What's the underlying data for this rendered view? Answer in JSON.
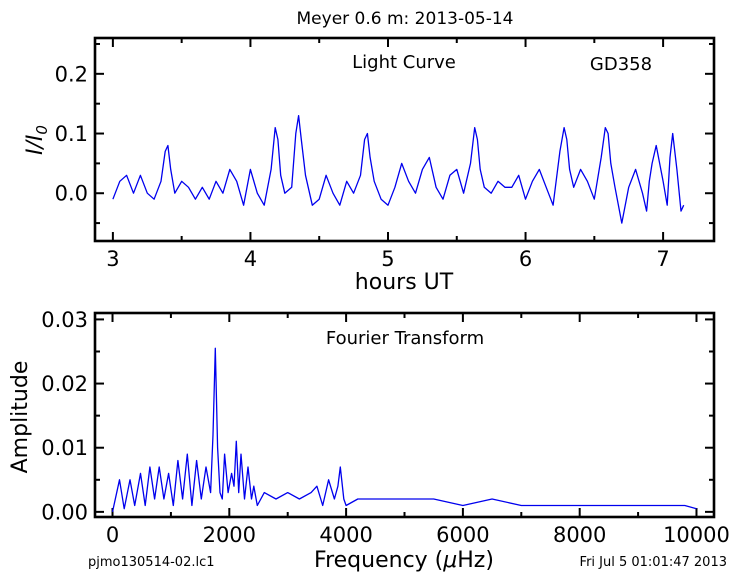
{
  "figure": {
    "title": "Meyer 0.6 m:  2013-05-14",
    "footer_left": "pjmo130514-02.lc1",
    "footer_right": "Fri Jul  5 01:01:47 2013",
    "series_color": "#0000ee"
  },
  "chart_data": [
    {
      "type": "line",
      "title": "Light Curve",
      "annotation": "GD358",
      "xlabel": "hours UT",
      "ylabel": "I/I0",
      "ylabel_main": "I/I",
      "ylabel_sub": "0",
      "xlim": [
        2.87,
        7.37
      ],
      "ylim": [
        -0.08,
        0.26
      ],
      "xticks": [
        3,
        4,
        5,
        6,
        7
      ],
      "xtick_labels": [
        "3",
        "4",
        "5",
        "6",
        "7"
      ],
      "yticks": [
        0.0,
        0.1,
        0.2
      ],
      "ytick_labels": [
        "0.0",
        "0.1",
        "0.2"
      ],
      "series": [
        {
          "x": [
            3.0,
            3.05,
            3.1,
            3.15,
            3.2,
            3.25,
            3.3,
            3.35,
            3.38,
            3.4,
            3.42,
            3.45,
            3.5,
            3.55,
            3.6,
            3.65,
            3.7,
            3.75,
            3.8,
            3.85,
            3.9,
            3.95,
            4.0,
            4.05,
            4.1,
            4.15,
            4.18,
            4.2,
            4.22,
            4.25,
            4.3,
            4.33,
            4.35,
            4.37,
            4.4,
            4.45,
            4.5,
            4.55,
            4.6,
            4.65,
            4.7,
            4.75,
            4.8,
            4.83,
            4.85,
            4.87,
            4.9,
            4.95,
            5.0,
            5.05,
            5.1,
            5.15,
            5.2,
            5.25,
            5.3,
            5.35,
            5.4,
            5.45,
            5.5,
            5.55,
            5.6,
            5.63,
            5.65,
            5.67,
            5.7,
            5.75,
            5.8,
            5.85,
            5.9,
            5.95,
            6.0,
            6.05,
            6.1,
            6.15,
            6.2,
            6.25,
            6.28,
            6.3,
            6.32,
            6.35,
            6.4,
            6.45,
            6.5,
            6.55,
            6.58,
            6.6,
            6.62,
            6.65,
            6.7,
            6.75,
            6.8,
            6.85,
            6.88,
            6.9,
            6.92,
            6.95,
            7.0,
            7.03,
            7.05,
            7.07,
            7.1,
            7.13,
            7.15
          ],
          "y": [
            -0.01,
            0.02,
            0.03,
            0.0,
            0.03,
            0.0,
            -0.01,
            0.02,
            0.07,
            0.08,
            0.04,
            0.0,
            0.02,
            0.01,
            -0.01,
            0.01,
            -0.01,
            0.02,
            0.0,
            0.04,
            0.02,
            -0.02,
            0.04,
            0.0,
            -0.02,
            0.04,
            0.11,
            0.09,
            0.03,
            0.0,
            0.01,
            0.1,
            0.13,
            0.09,
            0.03,
            -0.02,
            -0.01,
            0.03,
            0.0,
            -0.02,
            0.02,
            0.0,
            0.03,
            0.09,
            0.1,
            0.06,
            0.02,
            -0.01,
            -0.02,
            0.01,
            0.05,
            0.02,
            0.0,
            0.04,
            0.06,
            0.01,
            -0.01,
            0.03,
            0.04,
            0.0,
            0.05,
            0.11,
            0.09,
            0.04,
            0.01,
            0.0,
            0.02,
            0.01,
            0.01,
            0.03,
            -0.01,
            0.02,
            0.04,
            0.01,
            -0.02,
            0.07,
            0.11,
            0.09,
            0.04,
            0.01,
            0.04,
            0.02,
            -0.01,
            0.06,
            0.11,
            0.1,
            0.05,
            0.01,
            -0.05,
            0.01,
            0.04,
            0.0,
            -0.03,
            0.02,
            0.05,
            0.08,
            0.02,
            -0.02,
            0.06,
            0.1,
            0.04,
            -0.03,
            -0.02
          ]
        }
      ]
    },
    {
      "type": "line",
      "title": "Fourier Transform",
      "xlabel": "Frequency (μHz)",
      "xlabel_pre": "Frequency (",
      "xlabel_mu": "μ",
      "xlabel_post": "Hz)",
      "ylabel": "Amplitude",
      "xlim": [
        -300,
        10300
      ],
      "ylim": [
        -0.0008,
        0.031
      ],
      "xticks": [
        0,
        2000,
        4000,
        6000,
        8000,
        10000
      ],
      "xtick_labels": [
        "0",
        "2000",
        "4000",
        "6000",
        "8000",
        "10000"
      ],
      "yticks": [
        0.0,
        0.01,
        0.02,
        0.03
      ],
      "ytick_labels": [
        "0.00",
        "0.01",
        "0.02",
        "0.03"
      ],
      "series": [
        {
          "x": [
            0,
            120,
            200,
            300,
            380,
            480,
            560,
            640,
            720,
            800,
            880,
            960,
            1040,
            1120,
            1200,
            1280,
            1360,
            1440,
            1520,
            1600,
            1680,
            1720,
            1760,
            1800,
            1840,
            1880,
            1920,
            1980,
            2040,
            2080,
            2120,
            2160,
            2200,
            2260,
            2320,
            2380,
            2420,
            2480,
            2600,
            2800,
            3000,
            3200,
            3400,
            3500,
            3600,
            3700,
            3800,
            3860,
            3900,
            3960,
            4000,
            4200,
            4500,
            4800,
            5000,
            5200,
            5500,
            6000,
            6500,
            7000,
            7500,
            8000,
            8500,
            9000,
            9500,
            9800,
            10000
          ],
          "y": [
            0.0,
            0.005,
            0.0005,
            0.005,
            0.001,
            0.006,
            0.001,
            0.007,
            0.002,
            0.007,
            0.002,
            0.006,
            0.001,
            0.008,
            0.002,
            0.009,
            0.001,
            0.008,
            0.002,
            0.007,
            0.003,
            0.012,
            0.0255,
            0.01,
            0.003,
            0.002,
            0.009,
            0.003,
            0.006,
            0.004,
            0.011,
            0.003,
            0.009,
            0.002,
            0.007,
            0.002,
            0.004,
            0.001,
            0.003,
            0.002,
            0.003,
            0.002,
            0.003,
            0.004,
            0.001,
            0.005,
            0.002,
            0.004,
            0.007,
            0.002,
            0.001,
            0.002,
            0.002,
            0.002,
            0.002,
            0.002,
            0.002,
            0.001,
            0.002,
            0.001,
            0.001,
            0.001,
            0.001,
            0.001,
            0.001,
            0.001,
            0.0005
          ]
        }
      ]
    }
  ]
}
